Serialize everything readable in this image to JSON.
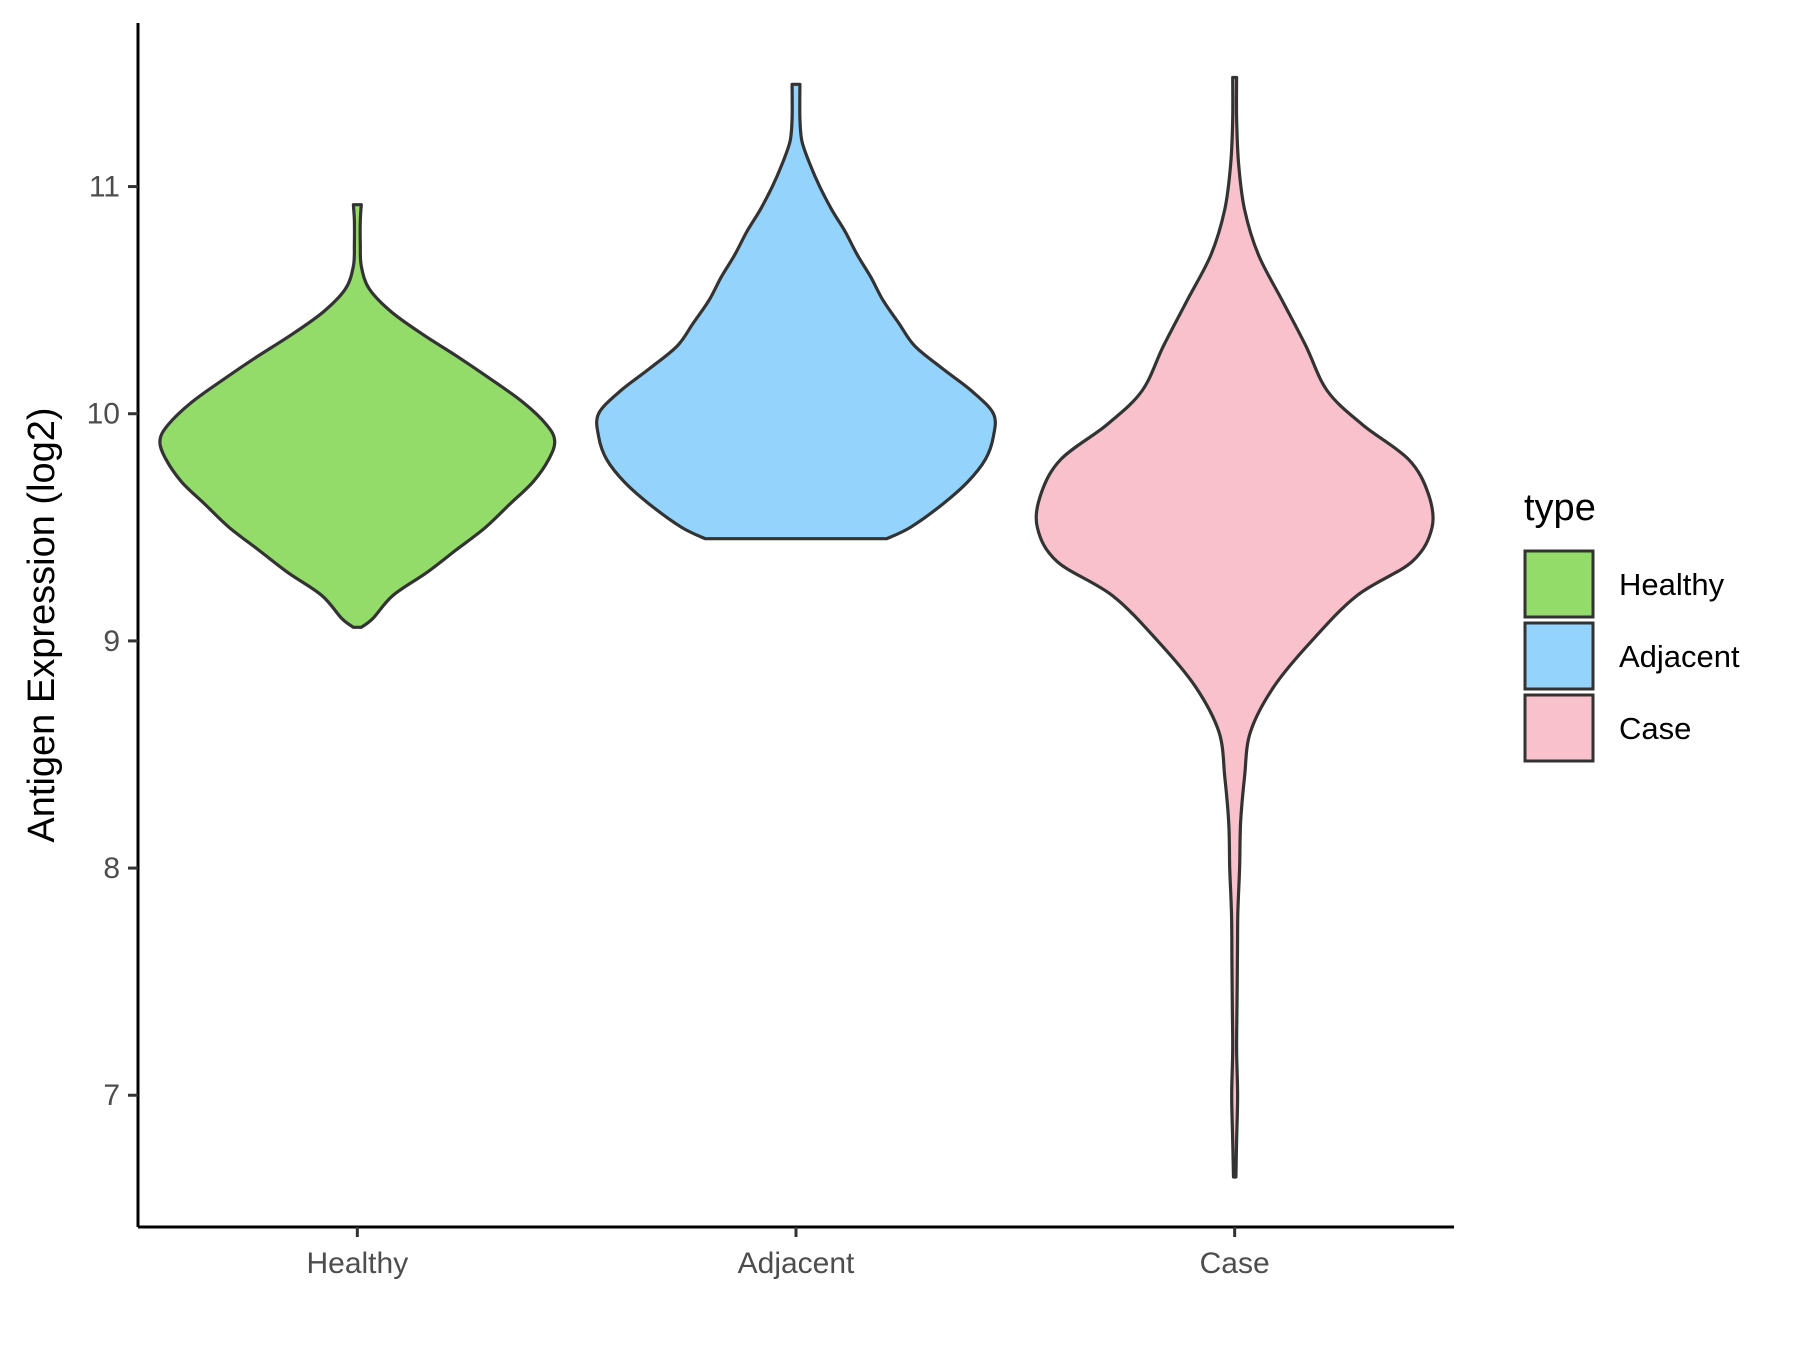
{
  "chart_data": {
    "type": "violin",
    "ylabel": "Antigen Expression (log2)",
    "xlabel": "",
    "ylim": [
      6.42,
      11.72
    ],
    "yticks": [
      7,
      8,
      9,
      10,
      11
    ],
    "categories": [
      "Healthy",
      "Adjacent",
      "Case"
    ],
    "legend": {
      "title": "type",
      "position": "right",
      "entries": [
        "Healthy",
        "Adjacent",
        "Case"
      ]
    },
    "grid": false,
    "colors": {
      "Healthy": "#93dc6a",
      "Adjacent": "#93d3fc",
      "Case": "#f8c1cb",
      "outline": "#333333",
      "axis": "#000000"
    },
    "series": [
      {
        "name": "Healthy",
        "min": 9.06,
        "max": 10.92,
        "density": [
          [
            9.06,
            0.02
          ],
          [
            9.1,
            0.08
          ],
          [
            9.2,
            0.18
          ],
          [
            9.3,
            0.35
          ],
          [
            9.4,
            0.5
          ],
          [
            9.5,
            0.65
          ],
          [
            9.6,
            0.77
          ],
          [
            9.7,
            0.89
          ],
          [
            9.8,
            0.97
          ],
          [
            9.88,
            1.0
          ],
          [
            9.95,
            0.96
          ],
          [
            10.05,
            0.84
          ],
          [
            10.15,
            0.68
          ],
          [
            10.25,
            0.51
          ],
          [
            10.35,
            0.33
          ],
          [
            10.45,
            0.17
          ],
          [
            10.55,
            0.06
          ],
          [
            10.65,
            0.02
          ],
          [
            10.75,
            0.015
          ],
          [
            10.85,
            0.015
          ],
          [
            10.92,
            0.02
          ]
        ]
      },
      {
        "name": "Adjacent",
        "min": 9.45,
        "max": 11.45,
        "density": [
          [
            9.45,
            0.46
          ],
          [
            9.5,
            0.58
          ],
          [
            9.6,
            0.74
          ],
          [
            9.7,
            0.87
          ],
          [
            9.8,
            0.96
          ],
          [
            9.9,
            1.0
          ],
          [
            10.0,
            1.0
          ],
          [
            10.1,
            0.89
          ],
          [
            10.2,
            0.74
          ],
          [
            10.3,
            0.6
          ],
          [
            10.4,
            0.52
          ],
          [
            10.5,
            0.44
          ],
          [
            10.6,
            0.38
          ],
          [
            10.7,
            0.31
          ],
          [
            10.8,
            0.25
          ],
          [
            10.9,
            0.18
          ],
          [
            11.0,
            0.12
          ],
          [
            11.1,
            0.07
          ],
          [
            11.2,
            0.03
          ],
          [
            11.3,
            0.02
          ],
          [
            11.45,
            0.02
          ]
        ]
      },
      {
        "name": "Case",
        "min": 6.64,
        "max": 11.48,
        "density": [
          [
            6.64,
            0.0
          ],
          [
            6.8,
            0.01
          ],
          [
            7.0,
            0.015
          ],
          [
            7.2,
            0.01
          ],
          [
            7.4,
            0.012
          ],
          [
            7.6,
            0.014
          ],
          [
            7.8,
            0.016
          ],
          [
            8.0,
            0.025
          ],
          [
            8.2,
            0.03
          ],
          [
            8.4,
            0.05
          ],
          [
            8.6,
            0.08
          ],
          [
            8.8,
            0.2
          ],
          [
            9.0,
            0.39
          ],
          [
            9.2,
            0.62
          ],
          [
            9.35,
            0.9
          ],
          [
            9.5,
            1.0
          ],
          [
            9.65,
            0.98
          ],
          [
            9.8,
            0.88
          ],
          [
            9.95,
            0.65
          ],
          [
            10.1,
            0.47
          ],
          [
            10.3,
            0.36
          ],
          [
            10.5,
            0.24
          ],
          [
            10.7,
            0.12
          ],
          [
            10.9,
            0.05
          ],
          [
            11.1,
            0.02
          ],
          [
            11.3,
            0.01
          ],
          [
            11.48,
            0.01
          ]
        ]
      }
    ]
  }
}
